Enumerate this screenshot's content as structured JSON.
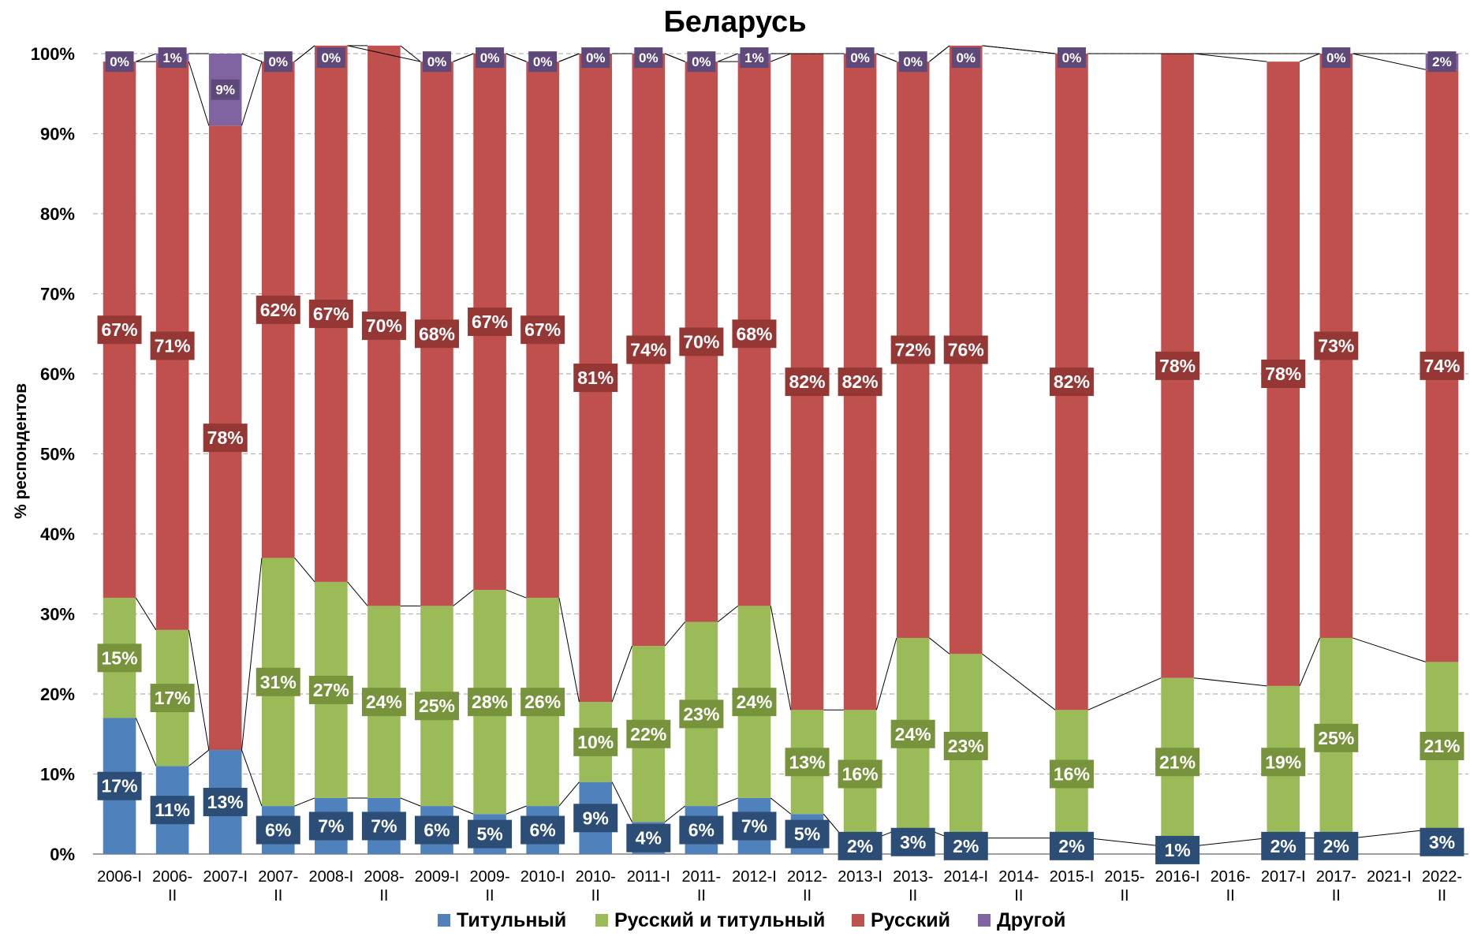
{
  "chart_data": {
    "type": "bar",
    "stacked": true,
    "title": "Беларусь",
    "ylabel": "% респондентов",
    "xlabel": "",
    "ylim": [
      0,
      100
    ],
    "yticks": [
      "0%",
      "10%",
      "20%",
      "30%",
      "40%",
      "50%",
      "60%",
      "70%",
      "80%",
      "90%",
      "100%"
    ],
    "grid": true,
    "legend_position": "bottom",
    "categories": [
      [
        "2006-I"
      ],
      [
        "2006-",
        "II"
      ],
      [
        "2007-I"
      ],
      [
        "2007-",
        "II"
      ],
      [
        "2008-I"
      ],
      [
        "2008-",
        "II"
      ],
      [
        "2009-I"
      ],
      [
        "2009-",
        "II"
      ],
      [
        "2010-I"
      ],
      [
        "2010-",
        "II"
      ],
      [
        "2011-I"
      ],
      [
        "2011-",
        "II"
      ],
      [
        "2012-I"
      ],
      [
        "2012-",
        "II"
      ],
      [
        "2013-I"
      ],
      [
        "2013-",
        "II"
      ],
      [
        "2014-I"
      ],
      [
        "2014-",
        "II"
      ],
      [
        "2015-I"
      ],
      [
        "2015-",
        "II"
      ],
      [
        "2016-I"
      ],
      [
        "2016-",
        "II"
      ],
      [
        "2017-I"
      ],
      [
        "2017-",
        "II"
      ],
      [
        "2021-I"
      ],
      [
        "2022-",
        "II"
      ]
    ],
    "series": [
      {
        "name": "Титульный",
        "color": "#4F81BD",
        "label_color": "#2C4D75",
        "values": [
          17,
          11,
          13,
          6,
          7,
          7,
          6,
          5,
          6,
          9,
          4,
          6,
          7,
          5,
          2,
          3,
          2,
          null,
          2,
          null,
          1,
          null,
          2,
          2,
          null,
          3
        ]
      },
      {
        "name": "Русский и титульный",
        "color": "#9BBB59",
        "label_color": "#77933C",
        "values": [
          15,
          17,
          0,
          31,
          27,
          24,
          25,
          28,
          26,
          10,
          22,
          23,
          24,
          13,
          16,
          24,
          23,
          null,
          16,
          null,
          21,
          null,
          19,
          25,
          null,
          21
        ]
      },
      {
        "name": "Русский",
        "color": "#C0504D",
        "label_color": "#953735",
        "values": [
          67,
          71,
          78,
          62,
          67,
          70,
          68,
          67,
          67,
          81,
          74,
          70,
          68,
          82,
          82,
          72,
          76,
          null,
          82,
          null,
          78,
          null,
          78,
          73,
          null,
          74
        ]
      },
      {
        "name": "Другой",
        "color": "#8064A2",
        "label_color": "#5F497A",
        "values": [
          0,
          1,
          9,
          0,
          0,
          null,
          0,
          0,
          0,
          0,
          0,
          0,
          1,
          null,
          0,
          0,
          0,
          null,
          0,
          null,
          null,
          null,
          null,
          0,
          null,
          2
        ]
      }
    ]
  }
}
